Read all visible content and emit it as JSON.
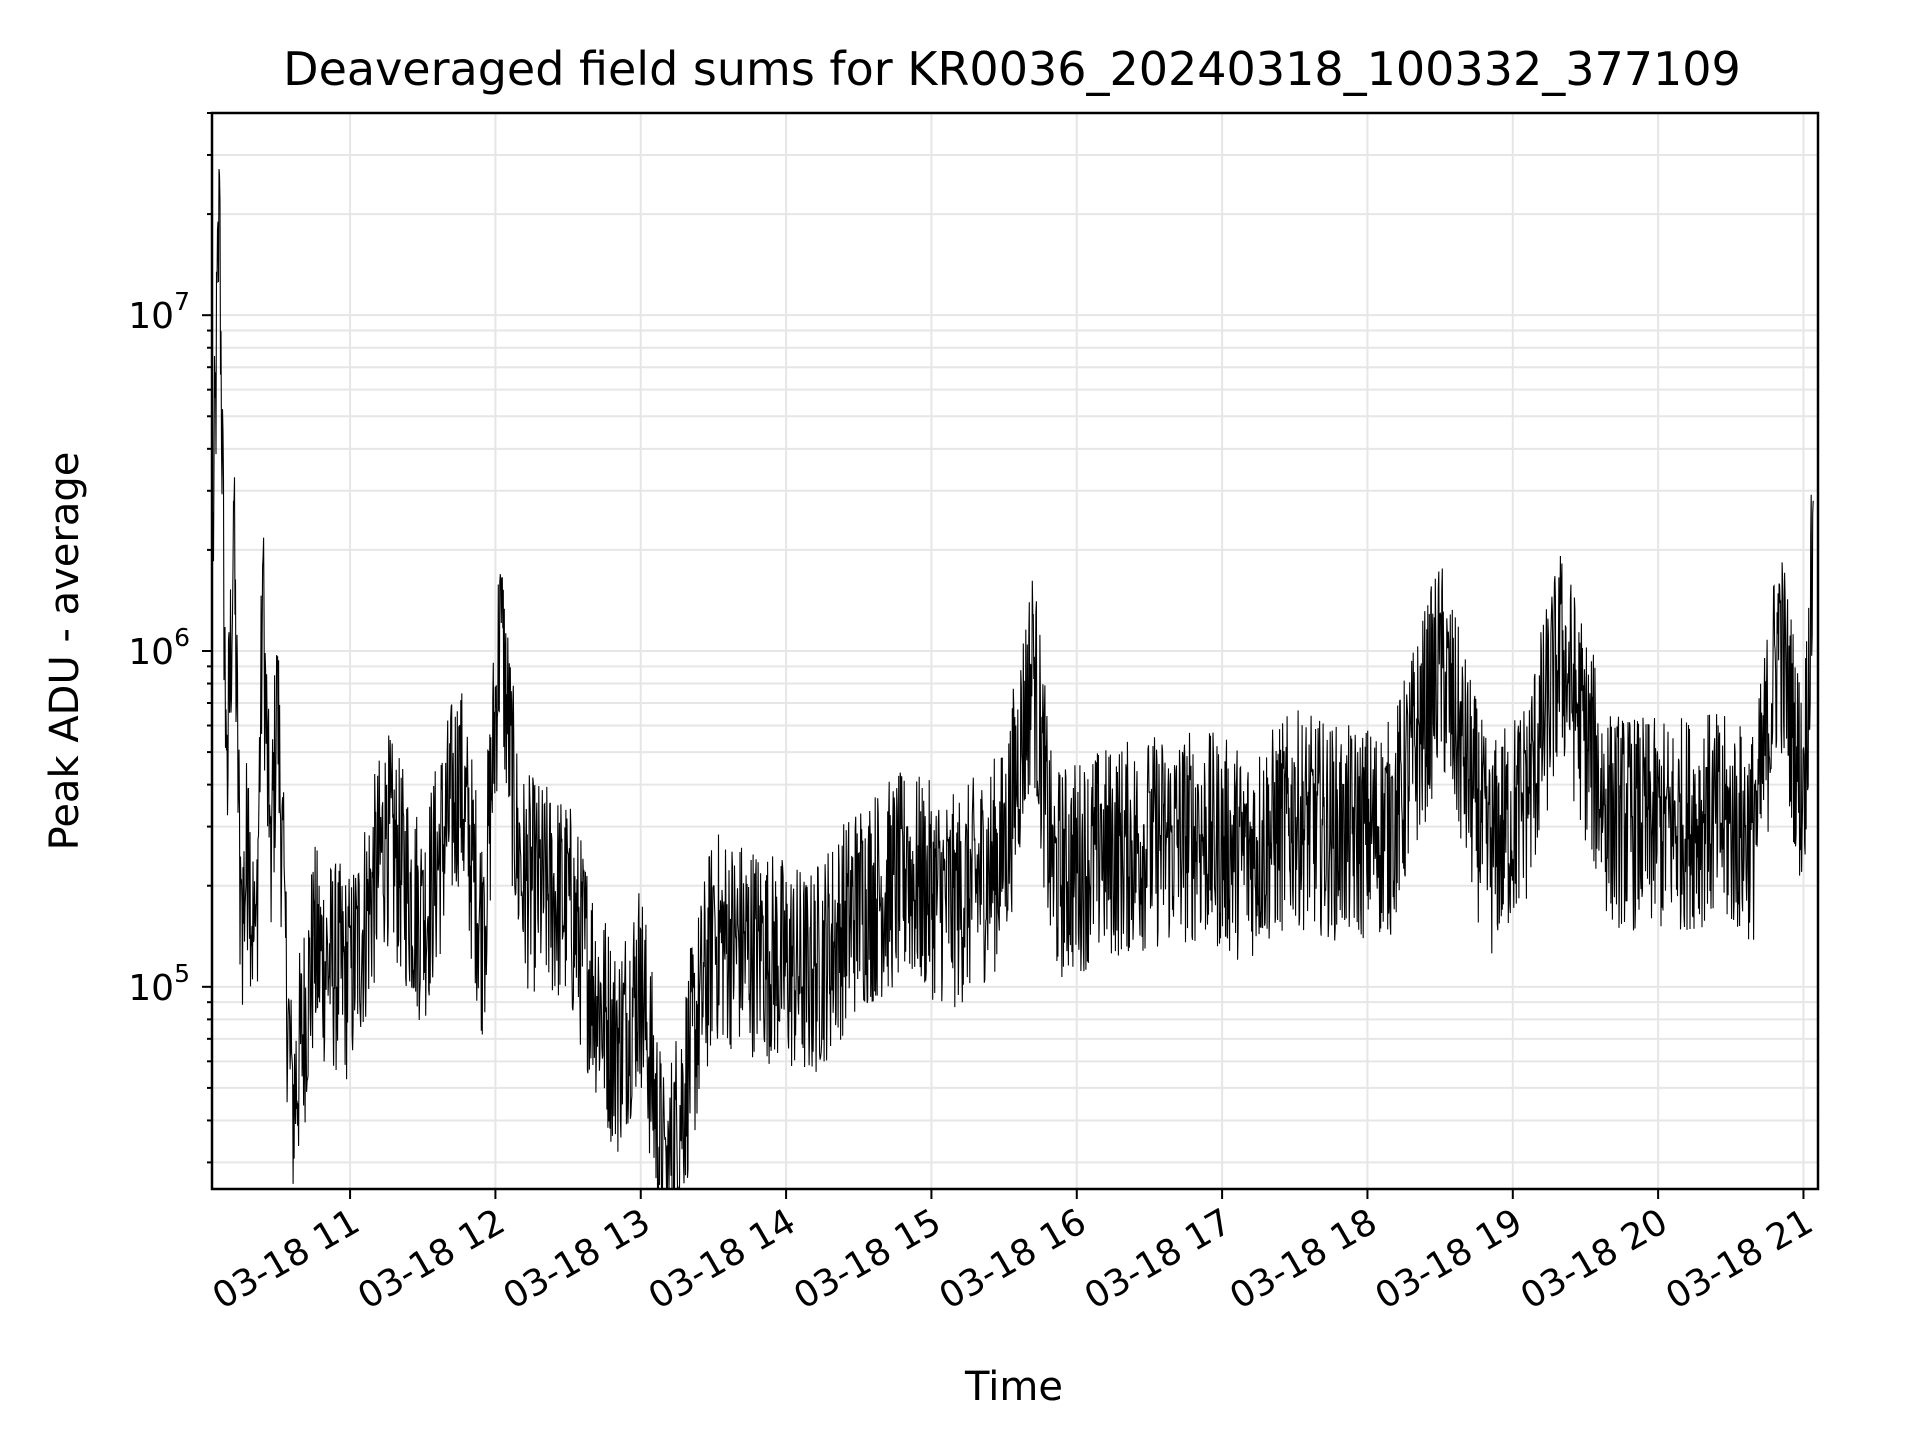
{
  "chart_data": {
    "type": "line",
    "title": "Deaveraged field sums for KR0036_20240318_100332_377109",
    "xlabel": "Time",
    "ylabel": "Peak ADU - average",
    "x_scale": "time",
    "y_scale": "log",
    "xlim": [
      "2024-03-18 10:03",
      "2024-03-18 21:06"
    ],
    "ylim": [
      25000,
      40000000
    ],
    "grid": true,
    "legend": "none",
    "line_color": "#000000",
    "grid_color": "#e6e6e6",
    "x_ticks": [
      {
        "t": "2024-03-18 11:00",
        "label": "03-18 11"
      },
      {
        "t": "2024-03-18 12:00",
        "label": "03-18 12"
      },
      {
        "t": "2024-03-18 13:00",
        "label": "03-18 13"
      },
      {
        "t": "2024-03-18 14:00",
        "label": "03-18 14"
      },
      {
        "t": "2024-03-18 15:00",
        "label": "03-18 15"
      },
      {
        "t": "2024-03-18 16:00",
        "label": "03-18 16"
      },
      {
        "t": "2024-03-18 17:00",
        "label": "03-18 17"
      },
      {
        "t": "2024-03-18 18:00",
        "label": "03-18 18"
      },
      {
        "t": "2024-03-18 19:00",
        "label": "03-18 19"
      },
      {
        "t": "2024-03-18 20:00",
        "label": "03-18 20"
      },
      {
        "t": "2024-03-18 21:00",
        "label": "03-18 21"
      }
    ],
    "y_ticks": [
      {
        "value": 100000,
        "base": "10",
        "exp": "5"
      },
      {
        "value": 1000000,
        "base": "10",
        "exp": "6"
      },
      {
        "value": 10000000,
        "base": "10",
        "exp": "7"
      }
    ],
    "series": [
      {
        "x": [
          "2024-03-18 10:03",
          "2024-03-18 10:06",
          "2024-03-18 10:09",
          "2024-03-18 10:12",
          "2024-03-18 10:15",
          "2024-03-18 10:18",
          "2024-03-18 10:21",
          "2024-03-18 10:24",
          "2024-03-18 10:27",
          "2024-03-18 10:30",
          "2024-03-18 10:33",
          "2024-03-18 10:36",
          "2024-03-18 10:45",
          "2024-03-18 11:00",
          "2024-03-18 11:15",
          "2024-03-18 11:30",
          "2024-03-18 11:45",
          "2024-03-18 11:55",
          "2024-03-18 12:02",
          "2024-03-18 12:10",
          "2024-03-18 12:30",
          "2024-03-18 12:50",
          "2024-03-18 13:00",
          "2024-03-18 13:10",
          "2024-03-18 13:30",
          "2024-03-18 13:50",
          "2024-03-18 14:10",
          "2024-03-18 14:30",
          "2024-03-18 14:50",
          "2024-03-18 15:10",
          "2024-03-18 15:30",
          "2024-03-18 15:42",
          "2024-03-18 15:50",
          "2024-03-18 16:10",
          "2024-03-18 16:30",
          "2024-03-18 16:50",
          "2024-03-18 17:10",
          "2024-03-18 17:30",
          "2024-03-18 17:50",
          "2024-03-18 18:10",
          "2024-03-18 18:30",
          "2024-03-18 18:50",
          "2024-03-18 19:05",
          "2024-03-18 19:20",
          "2024-03-18 19:40",
          "2024-03-18 20:00",
          "2024-03-18 20:20",
          "2024-03-18 20:40",
          "2024-03-18 20:50",
          "2024-03-18 21:00",
          "2024-03-18 21:04"
        ],
        "y": [
          2000000,
          30000000,
          500000,
          3000000,
          200000,
          400000,
          150000,
          2000000,
          300000,
          1000000,
          200000,
          60000,
          180000,
          150000,
          400000,
          220000,
          600000,
          200000,
          1700000,
          300000,
          250000,
          90000,
          150000,
          35000,
          200000,
          180000,
          150000,
          250000,
          300000,
          250000,
          350000,
          1300000,
          300000,
          350000,
          380000,
          400000,
          350000,
          450000,
          400000,
          420000,
          1300000,
          350000,
          500000,
          1400000,
          450000,
          420000,
          450000,
          400000,
          1600000,
          500000,
          2800000
        ],
        "noise_level": 0.65
      }
    ]
  }
}
